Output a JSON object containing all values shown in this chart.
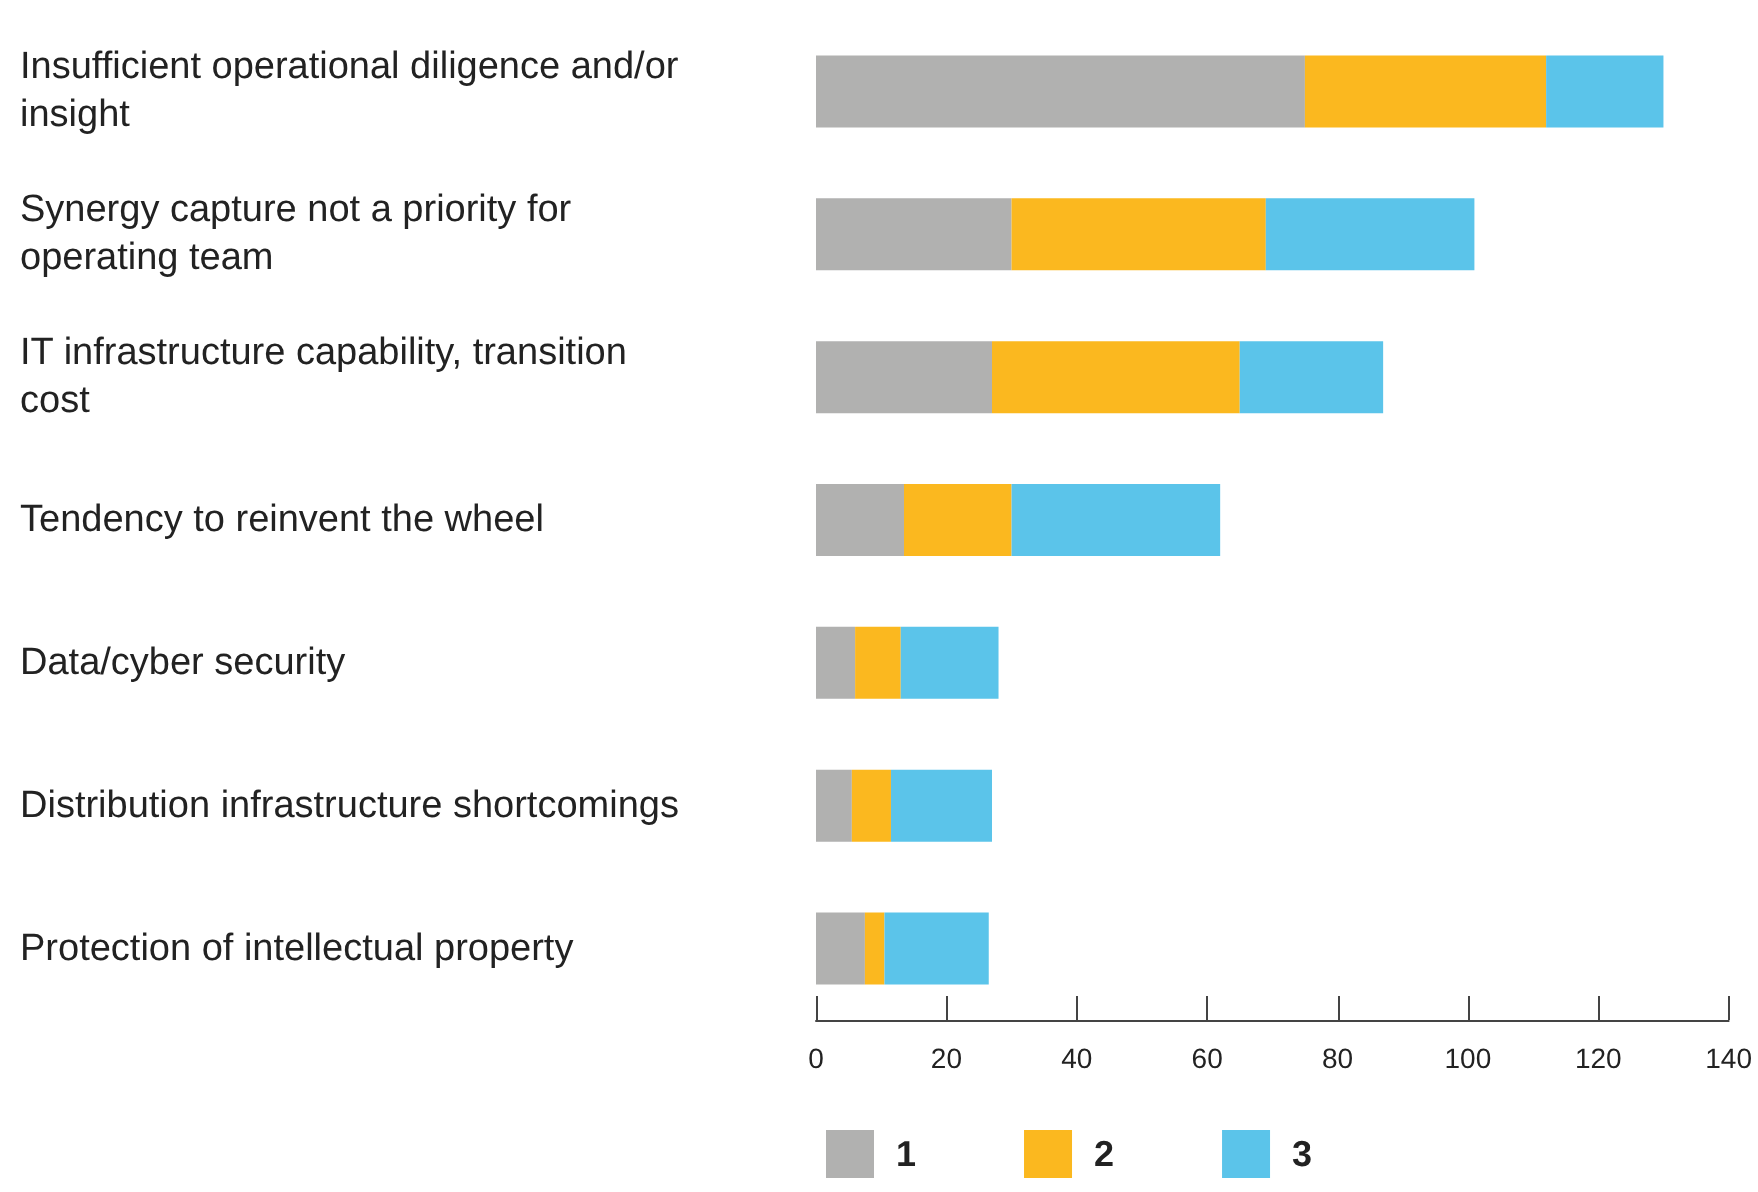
{
  "chart_data": {
    "type": "bar",
    "orientation": "horizontal",
    "stacked": true,
    "categories": [
      "Insufficient operational diligence and/or insight",
      "Synergy capture not a priority for operating team",
      "IT infrastructure capability, transition cost",
      "Tendency to reinvent the wheel",
      "Data/cyber security",
      "Distribution infrastructure shortcomings",
      "Protection of intellectual property"
    ],
    "series": [
      {
        "name": "1",
        "color": "#b1b1b0",
        "values": [
          75,
          30,
          27,
          13.5,
          6,
          5.5,
          7.5
        ]
      },
      {
        "name": "2",
        "color": "#fbb81f",
        "values": [
          37,
          39,
          38,
          16.5,
          7,
          6,
          3
        ]
      },
      {
        "name": "3",
        "color": "#5bc4ea",
        "values": [
          18,
          32,
          22,
          32,
          15,
          15.5,
          16
        ]
      }
    ],
    "xlim": [
      0,
      140
    ],
    "xticks": [
      0,
      20,
      40,
      60,
      80,
      100,
      120,
      140
    ],
    "grid": false,
    "legend": "bottom"
  }
}
